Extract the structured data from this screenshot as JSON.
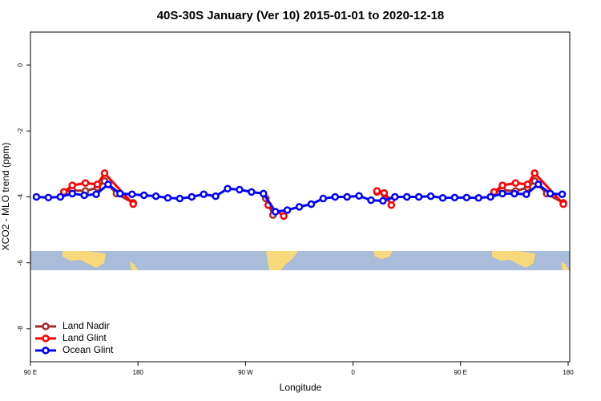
{
  "chart_data": {
    "type": "line",
    "title": "40S-30S January (Ver 10)   2015-01-01 to 2020-12-18",
    "x_label": "Longitude",
    "y_label": "XCO2 - MLO trend (ppm)",
    "xlim": [
      90,
      540
    ],
    "xticks": [
      {
        "value": 90,
        "label": "90 E"
      },
      180,
      {
        "value": 270,
        "label": "90 W"
      },
      {
        "value": 360,
        "label": "0"
      },
      {
        "value": 450,
        "label": "90 E"
      },
      {
        "value": 540,
        "label": "180"
      }
    ],
    "ylim": [
      -9,
      1
    ],
    "yticks": [
      0,
      -2,
      -4,
      -6,
      -8
    ],
    "legend": "bottom-left",
    "series": [
      {
        "name": "Land Nadir",
        "color": "#a52a2a",
        "x": [
          118,
          125,
          136,
          146,
          152,
          162,
          176,
          null,
          287,
          293,
          null,
          380,
          386,
          392,
          null,
          478,
          485,
          496,
          506,
          512,
          522,
          536
        ],
        "values": [
          -3.85,
          -3.8,
          -3.82,
          -3.72,
          -3.52,
          -3.9,
          -4.18,
          null,
          -4.05,
          -4.55,
          null,
          -3.85,
          -3.9,
          -4.1,
          null,
          -3.85,
          -3.8,
          -3.82,
          -3.72,
          -3.52,
          -3.9,
          -4.18
        ]
      },
      {
        "name": "Land Glint",
        "color": "#ff0000",
        "x": [
          118,
          125,
          136,
          146,
          152,
          176,
          null,
          289,
          302,
          null,
          380,
          386,
          392,
          null,
          478,
          485,
          496,
          506,
          512,
          536
        ],
        "values": [
          -3.85,
          -3.65,
          -3.58,
          -3.62,
          -3.28,
          -4.22,
          null,
          -4.25,
          -4.58,
          null,
          -3.82,
          -3.88,
          -4.25,
          null,
          -3.85,
          -3.65,
          -3.58,
          -3.62,
          -3.28,
          -4.22
        ]
      },
      {
        "name": "Ocean Glint",
        "color": "#0000ff",
        "x": [
          95,
          105,
          115,
          125,
          135,
          145,
          155,
          165,
          175,
          185,
          195,
          205,
          215,
          225,
          235,
          245,
          255,
          265,
          275,
          285,
          295,
          305,
          315,
          325,
          335,
          345,
          355,
          365,
          375,
          385,
          395,
          405,
          415,
          425,
          435,
          445,
          455,
          465,
          475,
          485,
          495,
          505,
          515,
          525,
          535
        ],
        "values": [
          -4.0,
          -4.02,
          -4.0,
          -3.9,
          -3.95,
          -3.92,
          -3.62,
          -3.9,
          -3.92,
          -3.95,
          -3.98,
          -4.03,
          -4.05,
          -4.0,
          -3.92,
          -3.98,
          -3.75,
          -3.78,
          -3.85,
          -3.9,
          -4.45,
          -4.4,
          -4.3,
          -4.22,
          -4.05,
          -4.0,
          -4.0,
          -3.97,
          -4.1,
          -4.12,
          -4.0,
          -4.0,
          -4.0,
          -3.98,
          -4.03,
          -4.02,
          -4.02,
          -4.03,
          -4.0,
          -3.9,
          -3.9,
          -3.92,
          -3.62,
          -3.9,
          -3.92
        ]
      }
    ]
  }
}
